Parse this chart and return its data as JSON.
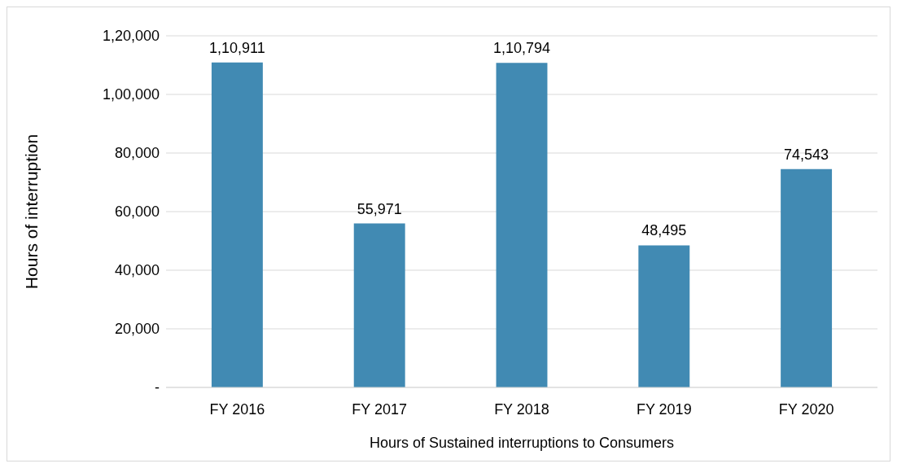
{
  "chart_data": {
    "type": "bar",
    "xlabel": "Hours of Sustained interruptions to Consumers",
    "ylabel": "Hours of interruption",
    "categories": [
      "FY 2016",
      "FY 2017",
      "FY 2018",
      "FY 2019",
      "FY 2020"
    ],
    "values": [
      110911,
      55971,
      110794,
      48495,
      74543
    ],
    "value_labels": [
      "1,10,911",
      "55,971",
      "1,10,794",
      "48,495",
      "74,543"
    ],
    "color": "#418ab3",
    "ylim": [
      0,
      120000
    ],
    "yticks": [
      {
        "value": 0,
        "label": "-"
      },
      {
        "value": 20000,
        "label": "20,000"
      },
      {
        "value": 40000,
        "label": "40,000"
      },
      {
        "value": 60000,
        "label": "60,000"
      },
      {
        "value": 80000,
        "label": "80,000"
      },
      {
        "value": 100000,
        "label": "1,00,000"
      },
      {
        "value": 120000,
        "label": "1,20,000"
      }
    ],
    "grid": "y"
  }
}
